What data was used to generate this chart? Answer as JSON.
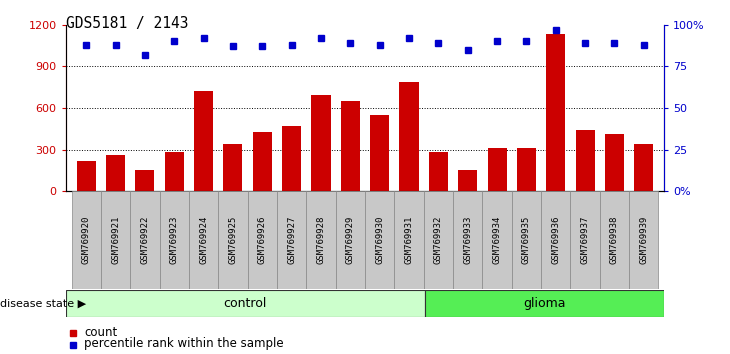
{
  "title": "GDS5181 / 2143",
  "samples": [
    "GSM769920",
    "GSM769921",
    "GSM769922",
    "GSM769923",
    "GSM769924",
    "GSM769925",
    "GSM769926",
    "GSM769927",
    "GSM769928",
    "GSM769929",
    "GSM769930",
    "GSM769931",
    "GSM769932",
    "GSM769933",
    "GSM769934",
    "GSM769935",
    "GSM769936",
    "GSM769937",
    "GSM769938",
    "GSM769939"
  ],
  "counts": [
    220,
    260,
    155,
    285,
    720,
    340,
    430,
    470,
    690,
    650,
    550,
    790,
    280,
    155,
    310,
    310,
    1130,
    440,
    410,
    340
  ],
  "percentiles": [
    88,
    88,
    82,
    90,
    92,
    87,
    87,
    88,
    92,
    89,
    88,
    92,
    89,
    85,
    90,
    90,
    97,
    89,
    89,
    88
  ],
  "bar_color": "#cc0000",
  "dot_color": "#0000cc",
  "control_color": "#ccffcc",
  "glioma_color": "#55ee55",
  "tick_bg_color": "#c8c8c8",
  "control_count": 12,
  "glioma_count": 8,
  "ylim_left": [
    0,
    1200
  ],
  "ylim_right": [
    0,
    100
  ],
  "yticks_left": [
    0,
    300,
    600,
    900,
    1200
  ],
  "yticks_right": [
    0,
    25,
    50,
    75,
    100
  ],
  "ytick_labels_left": [
    "0",
    "300",
    "600",
    "900",
    "1200"
  ],
  "ytick_labels_right": [
    "0%",
    "25",
    "50",
    "75",
    "100%"
  ],
  "grid_values": [
    300,
    600,
    900
  ],
  "legend_count_label": "count",
  "legend_pct_label": "percentile rank within the sample",
  "disease_state_label": "disease state",
  "control_label": "control",
  "glioma_label": "glioma"
}
